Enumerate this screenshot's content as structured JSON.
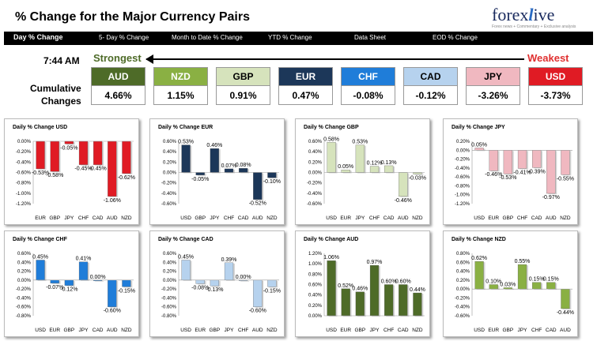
{
  "header": {
    "title": "% Change for the Major Currency Pairs",
    "logo_main": "forexlive",
    "logo_sub": "Forex news + Commentary + Exclusive analysis"
  },
  "tabs": [
    "Day % Change",
    "5- Day % Change",
    "Month to Date % Change",
    "YTD % Change",
    "Data Sheet",
    "EOD % Change"
  ],
  "time": "7:44 AM",
  "strongest_label": "Strongest",
  "weakest_label": "Weakest",
  "cumulative_label_1": "Cumulative",
  "cumulative_label_2": "Changes",
  "currencies": [
    {
      "name": "AUD",
      "value": "4.66%",
      "color": "#4e6b28"
    },
    {
      "name": "NZD",
      "value": "1.15%",
      "color": "#8ab043"
    },
    {
      "name": "GBP",
      "value": "0.91%",
      "color": "#d6e3bc"
    },
    {
      "name": "EUR",
      "value": "0.47%",
      "color": "#1c3759"
    },
    {
      "name": "CHF",
      "value": "-0.08%",
      "color": "#1f7dd9"
    },
    {
      "name": "CAD",
      "value": "-0.12%",
      "color": "#b6d2ee"
    },
    {
      "name": "JPY",
      "value": "-3.26%",
      "color": "#f0b8c0"
    },
    {
      "name": "USD",
      "value": "-3.73%",
      "color": "#e01b24"
    }
  ],
  "chart_data": [
    {
      "type": "bar",
      "title": "Daily % Change USD",
      "categories": [
        "EUR",
        "GBP",
        "JPY",
        "CHF",
        "CAD",
        "AUD",
        "NZD"
      ],
      "values": [
        -0.53,
        -0.58,
        -0.05,
        -0.45,
        -0.45,
        -1.06,
        -0.62
      ],
      "labels": [
        "-0.53%",
        "-0.58%",
        "-0.05%",
        "-0.45%",
        "-0.45%",
        "-1.06%",
        "-0.62%"
      ],
      "ylim": [
        -1.2,
        0
      ],
      "ticks": [
        "0.00%",
        "-0.20%",
        "-0.40%",
        "-0.60%",
        "-0.80%",
        "-1.00%",
        "-1.20%"
      ],
      "tickvals": [
        0,
        -0.2,
        -0.4,
        -0.6,
        -0.8,
        -1.0,
        -1.2
      ],
      "color": "#e01b24"
    },
    {
      "type": "bar",
      "title": "Daily % Change EUR",
      "categories": [
        "USD",
        "GBP",
        "JPY",
        "CHF",
        "CAD",
        "AUD",
        "NZD"
      ],
      "values": [
        0.53,
        -0.05,
        0.46,
        0.07,
        0.08,
        -0.52,
        -0.1
      ],
      "labels": [
        "0.53%",
        "-0.05%",
        "0.46%",
        "0.07%",
        "0.08%",
        "-0.52%",
        "-0.10%"
      ],
      "ylim": [
        -0.6,
        0.6
      ],
      "ticks": [
        "0.60%",
        "0.40%",
        "0.20%",
        "0.00%",
        "-0.20%",
        "-0.40%",
        "-0.60%"
      ],
      "tickvals": [
        0.6,
        0.4,
        0.2,
        0,
        -0.2,
        -0.4,
        -0.6
      ],
      "color": "#1c3759"
    },
    {
      "type": "bar",
      "title": "Daily % Change GBP",
      "categories": [
        "USD",
        "EUR",
        "JPY",
        "CHF",
        "CAD",
        "AUD",
        "NZD"
      ],
      "values": [
        0.58,
        0.05,
        0.53,
        0.12,
        0.13,
        -0.46,
        -0.03
      ],
      "labels": [
        "0.58%",
        "0.05%",
        "0.53%",
        "0.12%",
        "0.13%",
        "-0.46%",
        "-0.03%"
      ],
      "ylim": [
        -0.6,
        0.6
      ],
      "ticks": [
        "0.60%",
        "0.40%",
        "0.20%",
        "0.00%",
        "-0.20%",
        "-0.40%",
        "-0.60%"
      ],
      "tickvals": [
        0.6,
        0.4,
        0.2,
        0,
        -0.2,
        -0.4,
        -0.6
      ],
      "color": "#d6e3bc"
    },
    {
      "type": "bar",
      "title": "Daily % Change JPY",
      "categories": [
        "USD",
        "EUR",
        "GBP",
        "CHF",
        "CAD",
        "AUD",
        "NZD"
      ],
      "values": [
        0.05,
        -0.46,
        -0.53,
        -0.41,
        -0.39,
        -0.97,
        -0.55
      ],
      "labels": [
        "0.05%",
        "-0.46%",
        "-0.53%",
        "-0.41%",
        "-0.39%",
        "-0.97%",
        "-0.55%"
      ],
      "ylim": [
        -1.2,
        0.2
      ],
      "ticks": [
        "0.20%",
        "0.00%",
        "-0.20%",
        "-0.40%",
        "-0.60%",
        "-0.80%",
        "-1.00%",
        "-1.20%"
      ],
      "tickvals": [
        0.2,
        0,
        -0.2,
        -0.4,
        -0.6,
        -0.8,
        -1.0,
        -1.2
      ],
      "color": "#f0b8c0"
    },
    {
      "type": "bar",
      "title": "Daily % Change CHF",
      "categories": [
        "USD",
        "EUR",
        "GBP",
        "JPY",
        "CAD",
        "AUD",
        "NZD"
      ],
      "values": [
        0.45,
        -0.07,
        -0.12,
        0.41,
        0.0,
        -0.6,
        -0.15
      ],
      "labels": [
        "0.45%",
        "-0.07%",
        "-0.12%",
        "0.41%",
        "0.00%",
        "-0.60%",
        "-0.15%"
      ],
      "ylim": [
        -0.8,
        0.6
      ],
      "ticks": [
        "0.60%",
        "0.40%",
        "0.20%",
        "0.00%",
        "-0.20%",
        "-0.40%",
        "-0.60%",
        "-0.80%"
      ],
      "tickvals": [
        0.6,
        0.4,
        0.2,
        0,
        -0.2,
        -0.4,
        -0.6,
        -0.8
      ],
      "color": "#1f7dd9"
    },
    {
      "type": "bar",
      "title": "Daily % Change CAD",
      "categories": [
        "USD",
        "EUR",
        "GBP",
        "JPY",
        "CHF",
        "AUD",
        "NZD"
      ],
      "values": [
        0.45,
        -0.08,
        -0.13,
        0.39,
        0.0,
        -0.6,
        -0.15
      ],
      "labels": [
        "0.45%",
        "-0.08%",
        "-0.13%",
        "0.39%",
        "0.00%",
        "-0.60%",
        "-0.15%"
      ],
      "ylim": [
        -0.8,
        0.6
      ],
      "ticks": [
        "0.60%",
        "0.40%",
        "0.20%",
        "0.00%",
        "-0.20%",
        "-0.40%",
        "-0.60%",
        "-0.80%"
      ],
      "tickvals": [
        0.6,
        0.4,
        0.2,
        0,
        -0.2,
        -0.4,
        -0.6,
        -0.8
      ],
      "color": "#b6d2ee"
    },
    {
      "type": "bar",
      "title": "Daily % Change AUD",
      "categories": [
        "USD",
        "EUR",
        "GBP",
        "JPY",
        "CHF",
        "CAD",
        "NZD"
      ],
      "values": [
        1.06,
        0.52,
        0.46,
        0.97,
        0.6,
        0.6,
        0.44
      ],
      "labels": [
        "1.06%",
        "0.52%",
        "0.46%",
        "0.97%",
        "0.60%",
        "0.60%",
        "0.44%"
      ],
      "ylim": [
        0,
        1.2
      ],
      "ticks": [
        "1.20%",
        "1.00%",
        "0.80%",
        "0.60%",
        "0.40%",
        "0.20%",
        "0.00%"
      ],
      "tickvals": [
        1.2,
        1.0,
        0.8,
        0.6,
        0.4,
        0.2,
        0
      ],
      "color": "#4e6b28"
    },
    {
      "type": "bar",
      "title": "Daily % Change NZD",
      "categories": [
        "USD",
        "EUR",
        "GBP",
        "JPY",
        "CHF",
        "CAD",
        "AUD"
      ],
      "values": [
        0.62,
        0.1,
        0.03,
        0.55,
        0.15,
        0.15,
        -0.44
      ],
      "labels": [
        "0.62%",
        "0.10%",
        "0.03%",
        "0.55%",
        "0.15%",
        "0.15%",
        "-0.44%"
      ],
      "ylim": [
        -0.6,
        0.8
      ],
      "ticks": [
        "0.80%",
        "0.60%",
        "0.40%",
        "0.20%",
        "0.00%",
        "-0.20%",
        "-0.40%",
        "-0.60%"
      ],
      "tickvals": [
        0.8,
        0.6,
        0.4,
        0.2,
        0,
        -0.2,
        -0.4,
        -0.6
      ],
      "color": "#8ab043"
    }
  ]
}
